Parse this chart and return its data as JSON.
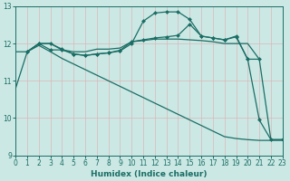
{
  "xlabel": "Humidex (Indice chaleur)",
  "xlim": [
    0,
    23
  ],
  "ylim": [
    9,
    13
  ],
  "yticks": [
    9,
    10,
    11,
    12,
    13
  ],
  "xticks": [
    0,
    1,
    2,
    3,
    4,
    5,
    6,
    7,
    8,
    9,
    10,
    11,
    12,
    13,
    14,
    15,
    16,
    17,
    18,
    19,
    20,
    21,
    22,
    23
  ],
  "bg_color": "#cce8e4",
  "grid_color": "#b0d8d4",
  "line_color": "#1a6e65",
  "lines": [
    {
      "x": [
        0,
        1,
        2,
        3,
        4,
        5,
        6,
        7,
        8,
        9,
        10,
        11,
        12,
        13,
        14,
        15,
        16,
        17,
        18,
        19,
        20,
        21,
        22,
        23
      ],
      "y": [
        10.8,
        11.78,
        11.95,
        11.78,
        11.6,
        11.45,
        11.3,
        11.15,
        11.0,
        10.85,
        10.7,
        10.55,
        10.4,
        10.25,
        10.1,
        9.95,
        9.8,
        9.65,
        9.5,
        9.45,
        9.42,
        9.4,
        9.4,
        9.4
      ],
      "marker": false
    },
    {
      "x": [
        0,
        1,
        2,
        3,
        4,
        5,
        6,
        7,
        8,
        9,
        10,
        11,
        12,
        13,
        14,
        15,
        16,
        17,
        18,
        19,
        20,
        21,
        22,
        23
      ],
      "y": [
        11.78,
        11.78,
        12.0,
        12.0,
        11.83,
        11.78,
        11.78,
        11.85,
        11.85,
        11.88,
        12.05,
        12.08,
        12.12,
        12.12,
        12.12,
        12.1,
        12.08,
        12.05,
        12.0,
        12.0,
        12.0,
        11.58,
        9.42,
        9.42
      ],
      "marker": false
    },
    {
      "x": [
        1,
        2,
        3,
        4,
        5,
        6,
        7,
        8,
        9,
        10,
        11,
        12,
        13,
        14,
        15,
        16,
        17,
        18,
        19,
        20,
        21,
        22,
        23
      ],
      "y": [
        11.78,
        12.0,
        11.83,
        11.83,
        11.72,
        11.68,
        11.72,
        11.75,
        11.8,
        12.0,
        12.6,
        12.82,
        12.85,
        12.85,
        12.65,
        12.2,
        12.15,
        12.1,
        12.2,
        11.58,
        9.95,
        9.42,
        9.42
      ],
      "marker": true
    },
    {
      "x": [
        1,
        2,
        3,
        4,
        5,
        6,
        7,
        8,
        9,
        10,
        11,
        12,
        13,
        14,
        15,
        16,
        17,
        18,
        19,
        20,
        21
      ],
      "y": [
        11.78,
        12.0,
        12.0,
        11.85,
        11.72,
        11.68,
        11.72,
        11.75,
        11.82,
        12.05,
        12.1,
        12.15,
        12.18,
        12.22,
        12.52,
        12.2,
        12.15,
        12.1,
        12.18,
        11.58,
        11.58
      ],
      "marker": true
    }
  ]
}
